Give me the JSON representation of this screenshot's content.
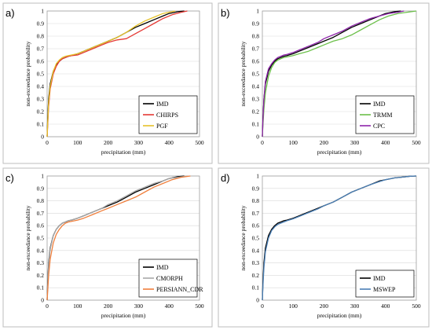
{
  "chart_data": [
    {
      "panel": "a)",
      "type": "line",
      "xlabel": "precipitation (mm)",
      "ylabel": "non-exceedance probability",
      "xlim": [
        0,
        500
      ],
      "ylim": [
        0,
        1
      ],
      "x_ticks": [
        0,
        100,
        200,
        300,
        400,
        500
      ],
      "y_ticks": [
        0,
        0.1,
        0.2,
        0.3,
        0.4,
        0.5,
        0.6,
        0.7,
        0.8,
        0.9,
        1
      ],
      "grid": "horizontal",
      "legend_position": "bottom-right",
      "series": [
        {
          "name": "IMD",
          "color": "#000000",
          "x": [
            0,
            2,
            5,
            10,
            20,
            30,
            40,
            50,
            60,
            70,
            80,
            100,
            120,
            150,
            180,
            200,
            230,
            260,
            290,
            320,
            350,
            380,
            400,
            430,
            450
          ],
          "y": [
            0,
            0.15,
            0.3,
            0.42,
            0.52,
            0.57,
            0.6,
            0.62,
            0.63,
            0.64,
            0.645,
            0.66,
            0.68,
            0.71,
            0.74,
            0.76,
            0.79,
            0.83,
            0.87,
            0.9,
            0.93,
            0.96,
            0.98,
            0.995,
            1
          ]
        },
        {
          "name": "CHIRPS",
          "color": "#e53935",
          "x": [
            0,
            2,
            5,
            10,
            20,
            30,
            40,
            50,
            60,
            70,
            80,
            100,
            120,
            150,
            180,
            200,
            230,
            260,
            290,
            320,
            350,
            380,
            410,
            440,
            460
          ],
          "y": [
            0,
            0.1,
            0.24,
            0.38,
            0.5,
            0.56,
            0.6,
            0.62,
            0.63,
            0.64,
            0.645,
            0.65,
            0.67,
            0.7,
            0.73,
            0.75,
            0.77,
            0.78,
            0.82,
            0.86,
            0.9,
            0.94,
            0.97,
            0.99,
            1
          ]
        },
        {
          "name": "PGF",
          "color": "#e6c229",
          "x": [
            0,
            2,
            5,
            10,
            20,
            30,
            40,
            50,
            60,
            70,
            80,
            100,
            120,
            150,
            180,
            200,
            230,
            260,
            290,
            320,
            350,
            380,
            400,
            420
          ],
          "y": [
            0,
            0.12,
            0.27,
            0.4,
            0.52,
            0.58,
            0.61,
            0.63,
            0.64,
            0.645,
            0.65,
            0.66,
            0.68,
            0.71,
            0.74,
            0.76,
            0.79,
            0.83,
            0.88,
            0.92,
            0.95,
            0.98,
            0.99,
            1
          ]
        }
      ]
    },
    {
      "panel": "b)",
      "type": "line",
      "xlabel": "precipitation (mm)",
      "ylabel": "non-exceedance probability",
      "xlim": [
        0,
        500
      ],
      "ylim": [
        0,
        1
      ],
      "x_ticks": [
        0,
        100,
        200,
        300,
        400,
        500
      ],
      "y_ticks": [
        0,
        0.1,
        0.2,
        0.3,
        0.4,
        0.5,
        0.6,
        0.7,
        0.8,
        0.9,
        1
      ],
      "grid": "horizontal",
      "legend_position": "bottom-right",
      "series": [
        {
          "name": "IMD",
          "color": "#000000",
          "x": [
            0,
            2,
            5,
            10,
            20,
            30,
            40,
            50,
            60,
            70,
            80,
            100,
            120,
            150,
            180,
            200,
            230,
            260,
            290,
            320,
            350,
            380,
            400,
            430,
            450
          ],
          "y": [
            0,
            0.15,
            0.3,
            0.42,
            0.52,
            0.57,
            0.6,
            0.62,
            0.63,
            0.64,
            0.645,
            0.66,
            0.68,
            0.71,
            0.74,
            0.76,
            0.79,
            0.83,
            0.87,
            0.9,
            0.93,
            0.96,
            0.98,
            0.995,
            1
          ]
        },
        {
          "name": "TRMM",
          "color": "#6cc04a",
          "x": [
            0,
            2,
            5,
            10,
            20,
            30,
            40,
            50,
            60,
            70,
            80,
            100,
            120,
            150,
            180,
            200,
            230,
            260,
            290,
            320,
            350,
            380,
            410,
            440,
            470,
            500
          ],
          "y": [
            0,
            0.1,
            0.22,
            0.35,
            0.48,
            0.55,
            0.59,
            0.61,
            0.62,
            0.63,
            0.635,
            0.645,
            0.66,
            0.68,
            0.71,
            0.73,
            0.76,
            0.78,
            0.81,
            0.85,
            0.89,
            0.93,
            0.96,
            0.98,
            0.99,
            1
          ]
        },
        {
          "name": "CPC",
          "color": "#8e24aa",
          "x": [
            0,
            2,
            5,
            10,
            20,
            30,
            40,
            50,
            60,
            70,
            80,
            100,
            120,
            150,
            180,
            200,
            230,
            260,
            290,
            320,
            350,
            380,
            410,
            440,
            460
          ],
          "y": [
            0,
            0.14,
            0.3,
            0.44,
            0.54,
            0.58,
            0.61,
            0.63,
            0.64,
            0.65,
            0.655,
            0.67,
            0.69,
            0.72,
            0.75,
            0.78,
            0.81,
            0.84,
            0.88,
            0.91,
            0.94,
            0.96,
            0.98,
            0.99,
            1
          ]
        }
      ]
    },
    {
      "panel": "c)",
      "type": "line",
      "xlabel": "precipitation (mm)",
      "ylabel": "non-exceedance probability",
      "xlim": [
        0,
        500
      ],
      "ylim": [
        0,
        1
      ],
      "x_ticks": [
        0,
        100,
        200,
        300,
        400,
        500
      ],
      "y_ticks": [
        0,
        0.1,
        0.2,
        0.3,
        0.4,
        0.5,
        0.6,
        0.7,
        0.8,
        0.9,
        1
      ],
      "grid": "horizontal",
      "legend_position": "bottom-right",
      "series": [
        {
          "name": "IMD",
          "color": "#000000",
          "x": [
            0,
            2,
            5,
            10,
            20,
            30,
            40,
            50,
            60,
            70,
            80,
            100,
            120,
            150,
            180,
            200,
            230,
            260,
            290,
            320,
            350,
            380,
            400,
            430,
            450
          ],
          "y": [
            0,
            0.15,
            0.3,
            0.42,
            0.52,
            0.57,
            0.6,
            0.62,
            0.63,
            0.64,
            0.645,
            0.66,
            0.68,
            0.71,
            0.74,
            0.76,
            0.79,
            0.83,
            0.87,
            0.9,
            0.93,
            0.96,
            0.98,
            0.995,
            1
          ]
        },
        {
          "name": "CMORPH",
          "color": "#a8a8a8",
          "x": [
            0,
            2,
            5,
            10,
            20,
            30,
            40,
            50,
            60,
            70,
            80,
            100,
            120,
            150,
            180,
            200,
            230,
            260,
            290,
            320,
            350,
            380,
            400,
            430,
            460
          ],
          "y": [
            0,
            0.13,
            0.28,
            0.41,
            0.52,
            0.57,
            0.6,
            0.62,
            0.63,
            0.64,
            0.645,
            0.66,
            0.68,
            0.71,
            0.74,
            0.77,
            0.8,
            0.84,
            0.88,
            0.91,
            0.94,
            0.96,
            0.98,
            0.99,
            1
          ]
        },
        {
          "name": "PERSIANN_CDR",
          "color": "#f07f3c",
          "x": [
            0,
            2,
            5,
            10,
            20,
            30,
            40,
            50,
            60,
            70,
            80,
            100,
            120,
            150,
            180,
            200,
            230,
            260,
            290,
            320,
            350,
            380,
            410,
            440,
            470
          ],
          "y": [
            0,
            0.08,
            0.2,
            0.33,
            0.46,
            0.53,
            0.57,
            0.6,
            0.62,
            0.63,
            0.635,
            0.645,
            0.66,
            0.69,
            0.72,
            0.74,
            0.77,
            0.8,
            0.83,
            0.87,
            0.91,
            0.94,
            0.97,
            0.99,
            1
          ]
        }
      ]
    },
    {
      "panel": "d)",
      "type": "line",
      "xlabel": "precipitation (mm)",
      "ylabel": "non-exceedance probability",
      "xlim": [
        0,
        500
      ],
      "ylim": [
        0,
        1
      ],
      "x_ticks": [
        0,
        100,
        200,
        300,
        400,
        500
      ],
      "y_ticks": [
        0,
        0.1,
        0.2,
        0.3,
        0.4,
        0.5,
        0.6,
        0.7,
        0.8,
        0.9,
        1
      ],
      "grid": "horizontal",
      "legend_position": "bottom-right",
      "series": [
        {
          "name": "IMD",
          "color": "#000000",
          "x": [
            0,
            2,
            5,
            10,
            20,
            30,
            40,
            50,
            60,
            70,
            80,
            100,
            120,
            150,
            180,
            200,
            230,
            260,
            290,
            320,
            350,
            380,
            400,
            430,
            450,
            480,
            500
          ],
          "y": [
            0,
            0.15,
            0.3,
            0.42,
            0.52,
            0.57,
            0.6,
            0.62,
            0.63,
            0.64,
            0.645,
            0.66,
            0.68,
            0.71,
            0.74,
            0.76,
            0.79,
            0.83,
            0.87,
            0.9,
            0.93,
            0.96,
            0.97,
            0.985,
            0.99,
            0.998,
            1
          ]
        },
        {
          "name": "MSWEP",
          "color": "#4a7fb5",
          "x": [
            0,
            2,
            5,
            10,
            20,
            30,
            40,
            50,
            60,
            70,
            80,
            100,
            120,
            150,
            180,
            200,
            230,
            260,
            290,
            320,
            350,
            380,
            400,
            430,
            450,
            480,
            500
          ],
          "y": [
            0,
            0.12,
            0.26,
            0.39,
            0.5,
            0.56,
            0.59,
            0.61,
            0.62,
            0.63,
            0.64,
            0.655,
            0.675,
            0.705,
            0.735,
            0.76,
            0.79,
            0.83,
            0.87,
            0.9,
            0.93,
            0.955,
            0.97,
            0.985,
            0.99,
            0.998,
            1
          ]
        }
      ]
    }
  ]
}
